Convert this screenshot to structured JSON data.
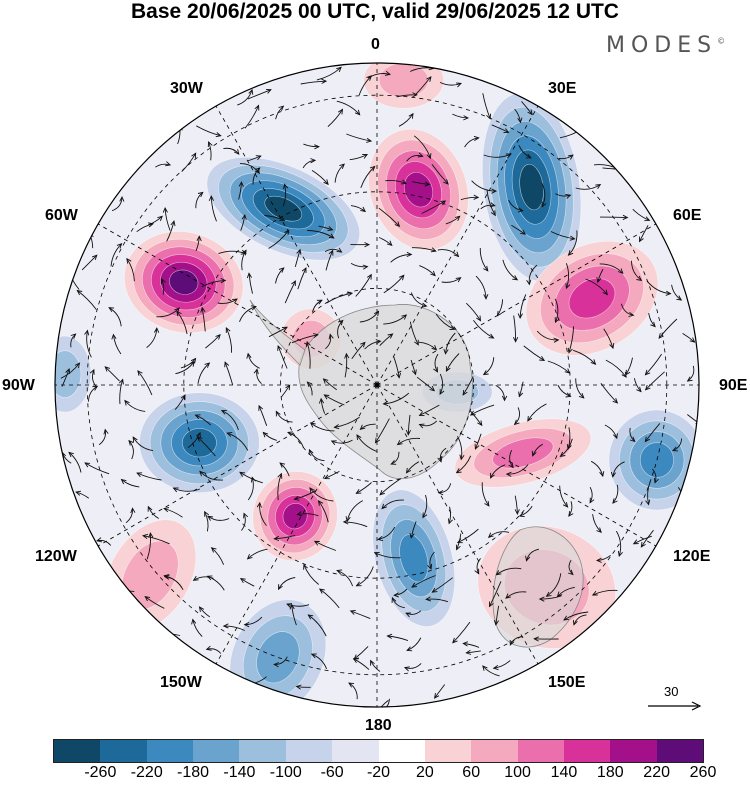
{
  "title": "Base 20/06/2025 00 UTC, valid 29/06/2025 12 UTC",
  "brand": {
    "name": "MODES",
    "mark": "©"
  },
  "longitude_labels": {
    "n0": "0",
    "w30": "30W",
    "e30": "30E",
    "w60": "60W",
    "e60": "60E",
    "w90": "90W",
    "e90": "90E",
    "w120": "120W",
    "e120": "120E",
    "w150": "150W",
    "e150": "150E",
    "s180": "180"
  },
  "reference_vector": {
    "label": "30"
  },
  "colorbar": {
    "colors": [
      "#0f4766",
      "#1d6a9a",
      "#3c89bf",
      "#6ba3cf",
      "#9cbfde",
      "#c7d3ea",
      "#e4e5f2",
      "#ffffff",
      "#f8d2d4",
      "#f5a9be",
      "#ea6fac",
      "#d8329a",
      "#a4108a",
      "#5e0c78"
    ],
    "tick_labels": [
      "-260",
      "-220",
      "-180",
      "-140",
      "-100",
      "-60",
      "-20",
      "20",
      "60",
      "100",
      "140",
      "180",
      "220",
      "260"
    ]
  },
  "map": {
    "anomalies": [
      {
        "lon": -28,
        "lat_r": 0.62,
        "rx": 82,
        "ry": 42,
        "rot": 25,
        "sign": -1,
        "level": 6
      },
      {
        "lon": 12,
        "lat_r": 0.62,
        "rx": 48,
        "ry": 62,
        "rot": -20,
        "sign": 1,
        "level": 5
      },
      {
        "lon": 38,
        "lat_r": 0.78,
        "rx": 48,
        "ry": 95,
        "rot": -8,
        "sign": -1,
        "level": 6
      },
      {
        "lon": 68,
        "lat_r": 0.72,
        "rx": 70,
        "ry": 52,
        "rot": -30,
        "sign": 1,
        "level": 4
      },
      {
        "lon": -62,
        "lat_r": 0.68,
        "rx": 60,
        "ry": 50,
        "rot": 15,
        "sign": 1,
        "level": 6
      },
      {
        "lon": -88,
        "lat_r": 0.97,
        "rx": 26,
        "ry": 38,
        "rot": 0,
        "sign": -1,
        "level": 2
      },
      {
        "lon": -55,
        "lat_r": 0.25,
        "rx": 30,
        "ry": 30,
        "rot": 0,
        "sign": 1,
        "level": 2
      },
      {
        "lon": -108,
        "lat_r": 0.58,
        "rx": 60,
        "ry": 50,
        "rot": 0,
        "sign": -1,
        "level": 5
      },
      {
        "lon": -148,
        "lat_r": 0.48,
        "rx": 42,
        "ry": 45,
        "rot": 20,
        "sign": 1,
        "level": 5
      },
      {
        "lon": 168,
        "lat_r": 0.55,
        "rx": 38,
        "ry": 70,
        "rot": -15,
        "sign": -1,
        "level": 4
      },
      {
        "lon": 115,
        "lat_r": 0.5,
        "rx": 70,
        "ry": 30,
        "rot": -15,
        "sign": 1,
        "level": 3
      },
      {
        "lon": 105,
        "lat_r": 0.9,
        "rx": 48,
        "ry": 50,
        "rot": 0,
        "sign": -1,
        "level": 4
      },
      {
        "lon": 140,
        "lat_r": 0.82,
        "rx": 70,
        "ry": 60,
        "rot": 20,
        "sign": 1,
        "level": 2
      },
      {
        "lon": -160,
        "lat_r": 0.9,
        "rx": 45,
        "ry": 60,
        "rot": 25,
        "sign": -1,
        "level": 3
      },
      {
        "lon": -130,
        "lat_r": 0.92,
        "rx": 40,
        "ry": 60,
        "rot": 30,
        "sign": 1,
        "level": 2
      },
      {
        "lon": 95,
        "lat_r": 0.25,
        "rx": 35,
        "ry": 20,
        "rot": 0,
        "sign": -1,
        "level": 2
      },
      {
        "lon": 5,
        "lat_r": 0.95,
        "rx": 40,
        "ry": 28,
        "rot": 0,
        "sign": 1,
        "level": 2
      }
    ]
  }
}
